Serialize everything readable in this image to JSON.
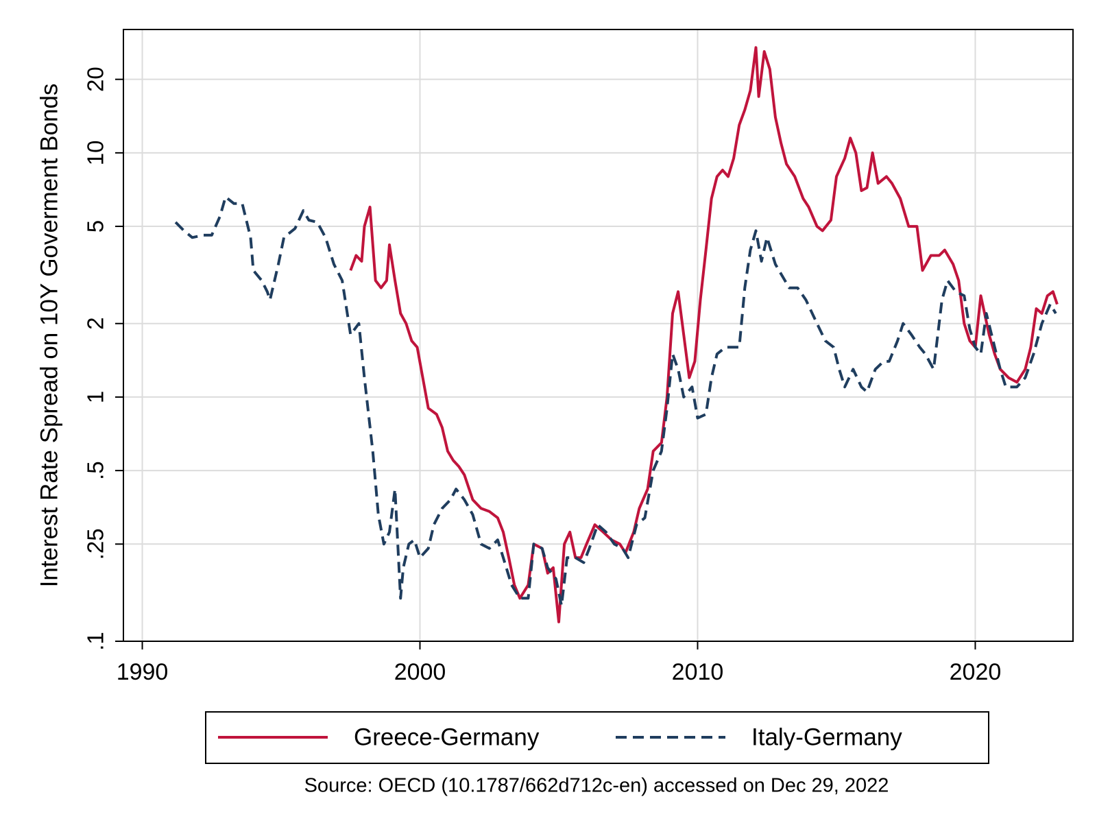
{
  "chart_data": {
    "type": "line",
    "y_label": "Interest Rate Spread on 10Y Goverment Bonds",
    "note": "Source: OECD (10.1787/662d712c-en) accessed on Dec 29, 2022",
    "xlim": [
      1989.32,
      2023.52
    ],
    "xticks": [
      1990,
      2000,
      2010,
      2020
    ],
    "ylim": [
      0.1,
      32
    ],
    "log_y": true,
    "yticks": [
      {
        "value": 0.1,
        "label": ".1"
      },
      {
        "value": 0.25,
        "label": ".25"
      },
      {
        "value": 0.5,
        "label": ".5"
      },
      1,
      2,
      5,
      10,
      20
    ],
    "grid": true,
    "legend": "bottom",
    "series": [
      {
        "name": "Greece-Germany",
        "color": "#c0143c",
        "style": "solid",
        "x": [
          1997.5,
          1997.7,
          1997.9,
          1998.0,
          1998.2,
          1998.4,
          1998.6,
          1998.8,
          1998.9,
          1999.1,
          1999.3,
          1999.5,
          1999.7,
          1999.9,
          2000.1,
          2000.3,
          2000.6,
          2000.8,
          2001.0,
          2001.2,
          2001.4,
          2001.6,
          2001.9,
          2002.2,
          2002.5,
          2002.8,
          2003.0,
          2003.2,
          2003.4,
          2003.6,
          2003.9,
          2004.1,
          2004.4,
          2004.6,
          2004.8,
          2005.0,
          2005.2,
          2005.4,
          2005.6,
          2005.8,
          2006.0,
          2006.3,
          2006.6,
          2006.9,
          2007.2,
          2007.4,
          2007.7,
          2007.9,
          2008.2,
          2008.4,
          2008.7,
          2008.9,
          2009.1,
          2009.3,
          2009.5,
          2009.7,
          2009.9,
          2010.1,
          2010.3,
          2010.5,
          2010.7,
          2010.9,
          2011.1,
          2011.3,
          2011.5,
          2011.7,
          2011.9,
          2012.1,
          2012.2,
          2012.4,
          2012.6,
          2012.8,
          2013.0,
          2013.2,
          2013.5,
          2013.8,
          2014.0,
          2014.3,
          2014.5,
          2014.8,
          2015.0,
          2015.3,
          2015.5,
          2015.7,
          2015.9,
          2016.1,
          2016.3,
          2016.5,
          2016.8,
          2017.0,
          2017.3,
          2017.6,
          2017.9,
          2018.1,
          2018.4,
          2018.7,
          2018.9,
          2019.2,
          2019.4,
          2019.6,
          2019.8,
          2020.0,
          2020.2,
          2020.5,
          2020.7,
          2020.9,
          2021.2,
          2021.5,
          2021.8,
          2022.0,
          2022.2,
          2022.4,
          2022.6,
          2022.8,
          2022.95
        ],
        "values": [
          3.3,
          3.8,
          3.6,
          5.0,
          6.0,
          3.0,
          2.8,
          3.0,
          4.2,
          3.0,
          2.2,
          2.0,
          1.7,
          1.6,
          1.2,
          0.9,
          0.85,
          0.75,
          0.6,
          0.55,
          0.52,
          0.48,
          0.38,
          0.35,
          0.34,
          0.32,
          0.28,
          0.22,
          0.17,
          0.15,
          0.17,
          0.25,
          0.24,
          0.19,
          0.2,
          0.12,
          0.25,
          0.28,
          0.22,
          0.22,
          0.25,
          0.3,
          0.28,
          0.26,
          0.25,
          0.23,
          0.28,
          0.35,
          0.42,
          0.6,
          0.65,
          1.0,
          2.2,
          2.7,
          1.8,
          1.2,
          1.4,
          2.5,
          4.0,
          6.5,
          8.0,
          8.5,
          8.0,
          9.5,
          13.0,
          15.0,
          18.0,
          27.0,
          17.0,
          26.0,
          22.0,
          14.0,
          11.0,
          9.0,
          8.0,
          6.5,
          6.0,
          5.0,
          4.8,
          5.3,
          8.0,
          9.5,
          11.5,
          10.0,
          7.0,
          7.2,
          10.0,
          7.5,
          8.0,
          7.5,
          6.5,
          5.0,
          5.0,
          3.3,
          3.8,
          3.8,
          4.0,
          3.5,
          3.0,
          2.0,
          1.7,
          1.6,
          2.6,
          1.8,
          1.5,
          1.3,
          1.2,
          1.15,
          1.3,
          1.6,
          2.3,
          2.2,
          2.6,
          2.7,
          2.4
        ]
      },
      {
        "name": "Italy-Germany",
        "color": "#1f3d5e",
        "style": "dashed",
        "x": [
          1991.2,
          1991.5,
          1991.8,
          1992.2,
          1992.5,
          1992.8,
          1993.0,
          1993.3,
          1993.6,
          1993.9,
          1994.0,
          1994.3,
          1994.5,
          1994.6,
          1994.9,
          1995.1,
          1995.5,
          1995.8,
          1996.0,
          1996.3,
          1996.6,
          1996.9,
          1997.2,
          1997.5,
          1997.8,
          1998.0,
          1998.3,
          1998.5,
          1998.7,
          1998.9,
          1999.1,
          1999.3,
          1999.4,
          1999.6,
          1999.8,
          2000.0,
          2000.3,
          2000.5,
          2000.8,
          2001.1,
          2001.3,
          2001.6,
          2001.9,
          2002.2,
          2002.5,
          2002.8,
          2003.0,
          2003.3,
          2003.6,
          2003.9,
          2004.1,
          2004.4,
          2004.6,
          2004.9,
          2005.1,
          2005.3,
          2005.6,
          2005.9,
          2006.1,
          2006.4,
          2006.7,
          2007.0,
          2007.3,
          2007.5,
          2007.8,
          2008.1,
          2008.4,
          2008.7,
          2008.9,
          2009.1,
          2009.3,
          2009.5,
          2009.8,
          2010.0,
          2010.3,
          2010.5,
          2010.7,
          2011.0,
          2011.3,
          2011.5,
          2011.7,
          2011.9,
          2012.1,
          2012.3,
          2012.5,
          2012.8,
          2013.0,
          2013.3,
          2013.6,
          2013.9,
          2014.3,
          2014.6,
          2014.9,
          2015.1,
          2015.3,
          2015.6,
          2015.9,
          2016.1,
          2016.4,
          2016.7,
          2016.9,
          2017.2,
          2017.4,
          2017.7,
          2018.0,
          2018.2,
          2018.5,
          2018.8,
          2019.0,
          2019.3,
          2019.6,
          2019.8,
          2020.0,
          2020.2,
          2020.4,
          2020.7,
          2020.9,
          2021.1,
          2021.3,
          2021.5,
          2021.8,
          2022.1,
          2022.4,
          2022.7,
          2022.9
        ],
        "values": [
          5.2,
          4.8,
          4.5,
          4.6,
          4.6,
          5.5,
          6.6,
          6.2,
          6.2,
          4.5,
          3.3,
          3.0,
          2.7,
          2.5,
          3.5,
          4.5,
          4.9,
          5.8,
          5.3,
          5.2,
          4.5,
          3.5,
          3.0,
          1.8,
          2.0,
          1.2,
          0.6,
          0.33,
          0.25,
          0.28,
          0.42,
          0.15,
          0.2,
          0.25,
          0.26,
          0.22,
          0.24,
          0.3,
          0.35,
          0.38,
          0.42,
          0.38,
          0.33,
          0.25,
          0.24,
          0.26,
          0.22,
          0.17,
          0.15,
          0.15,
          0.25,
          0.24,
          0.2,
          0.18,
          0.14,
          0.22,
          0.22,
          0.21,
          0.24,
          0.3,
          0.28,
          0.25,
          0.24,
          0.22,
          0.3,
          0.32,
          0.5,
          0.6,
          0.9,
          1.5,
          1.3,
          1.0,
          1.1,
          0.82,
          0.85,
          1.2,
          1.5,
          1.6,
          1.6,
          1.6,
          2.8,
          4.0,
          4.8,
          3.6,
          4.5,
          3.5,
          3.2,
          2.8,
          2.8,
          2.5,
          2.0,
          1.7,
          1.6,
          1.3,
          1.1,
          1.3,
          1.1,
          1.05,
          1.3,
          1.4,
          1.4,
          1.7,
          2.0,
          1.8,
          1.6,
          1.5,
          1.3,
          2.5,
          3.0,
          2.7,
          2.6,
          1.9,
          1.6,
          1.5,
          2.2,
          1.6,
          1.3,
          1.1,
          1.1,
          1.1,
          1.2,
          1.5,
          2.0,
          2.4,
          2.2
        ]
      }
    ]
  }
}
